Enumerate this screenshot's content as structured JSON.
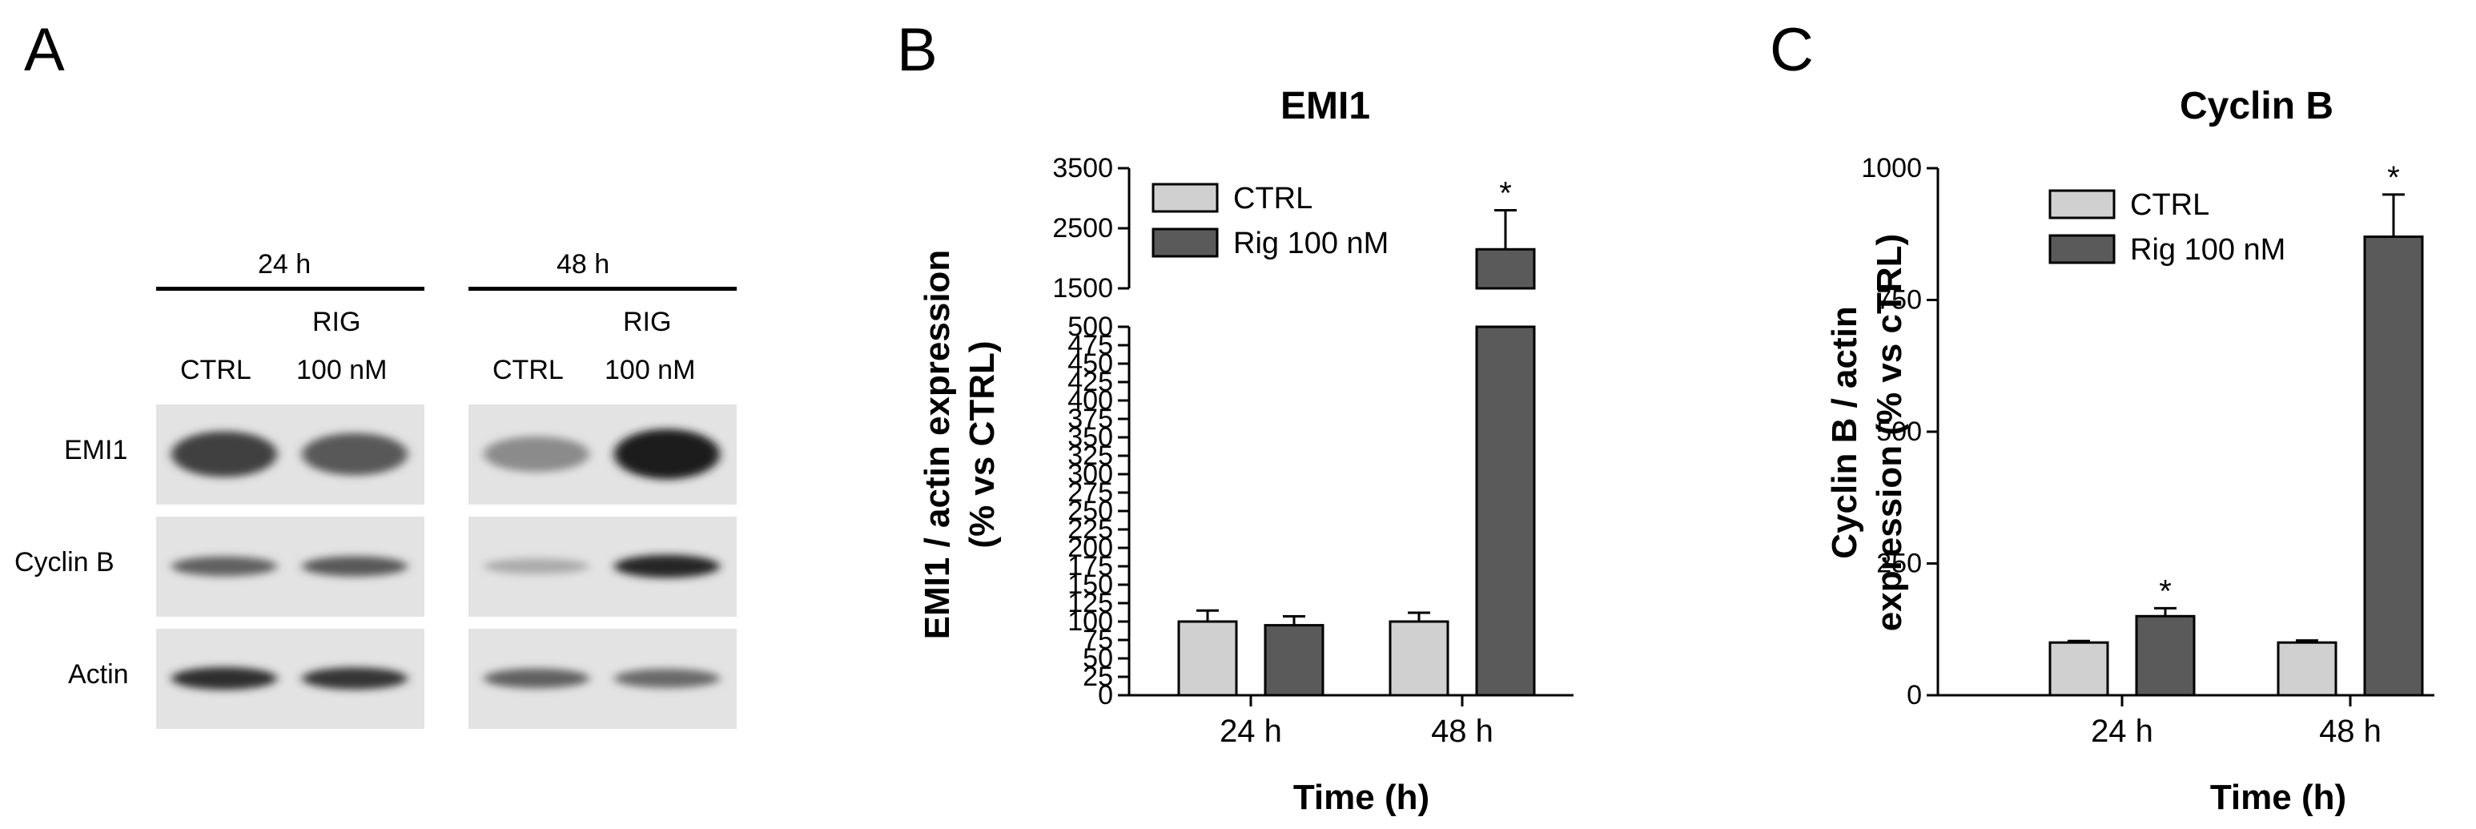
{
  "panel_a": {
    "letter": "A",
    "groups": [
      {
        "time": "24 h",
        "lanes": [
          {
            "line1": "",
            "line2": "CTRL"
          },
          {
            "line1": "RIG",
            "line2": "100 nM"
          }
        ]
      },
      {
        "time": "48 h",
        "lanes": [
          {
            "line1": "",
            "line2": "CTRL"
          },
          {
            "line1": "RIG",
            "line2": "100 nM"
          }
        ]
      }
    ],
    "rows": [
      {
        "label": "EMI1",
        "intensity": [
          0.75,
          0.6,
          0.3,
          0.95
        ]
      },
      {
        "label": "Cyclin B",
        "intensity": [
          0.55,
          0.6,
          0.12,
          0.9
        ]
      },
      {
        "label": "Actin",
        "intensity": [
          0.85,
          0.8,
          0.55,
          0.5
        ]
      }
    ]
  },
  "chart_data": [
    {
      "type": "bar",
      "panel": "B",
      "title": "EMI1",
      "xlabel": "Time (h)",
      "ylabel": "EMI1 / actin expression (% vs CTRL)",
      "categories": [
        "24 h",
        "48 h"
      ],
      "series": [
        {
          "name": "CTRL",
          "values": [
            100,
            100
          ],
          "errors": [
            15,
            12
          ],
          "color": "#d0d0d0",
          "sig": [
            false,
            false
          ]
        },
        {
          "name": "Rig 100 nM",
          "values": [
            95,
            2150
          ],
          "errors": [
            12,
            650
          ],
          "color": "#5a5a5a",
          "sig": [
            false,
            true
          ]
        }
      ],
      "axis_break": {
        "lower": [
          0,
          500
        ],
        "upper": [
          1500,
          3500
        ]
      },
      "lower_ticks": [
        "0",
        "25",
        "50",
        "75",
        "100",
        "125",
        "150",
        "175",
        "200",
        "225",
        "250",
        "275",
        "300",
        "325",
        "350",
        "375",
        "400",
        "425",
        "450",
        "475",
        "500"
      ],
      "upper_ticks": [
        "1500",
        "2500",
        "3500"
      ],
      "sig_label": "*",
      "legend": "top-left",
      "grid": false
    },
    {
      "type": "bar",
      "panel": "C",
      "title": "Cyclin B",
      "xlabel": "Time (h)",
      "ylabel": "Cyclin B / actin expression (% vs cTRL)",
      "categories": [
        "24 h",
        "48 h"
      ],
      "series": [
        {
          "name": "CTRL",
          "values": [
            100,
            100
          ],
          "errors": [
            3,
            4
          ],
          "color": "#d0d0d0",
          "sig": [
            false,
            false
          ]
        },
        {
          "name": "Rig 100 nM",
          "values": [
            150,
            870
          ],
          "errors": [
            15,
            80
          ],
          "color": "#5a5a5a",
          "sig": [
            true,
            true
          ]
        }
      ],
      "ylim": [
        0,
        1000
      ],
      "ticks": [
        "0",
        "250",
        "500",
        "750",
        "1000"
      ],
      "sig_label": "*",
      "legend": "top-left",
      "grid": false
    }
  ]
}
